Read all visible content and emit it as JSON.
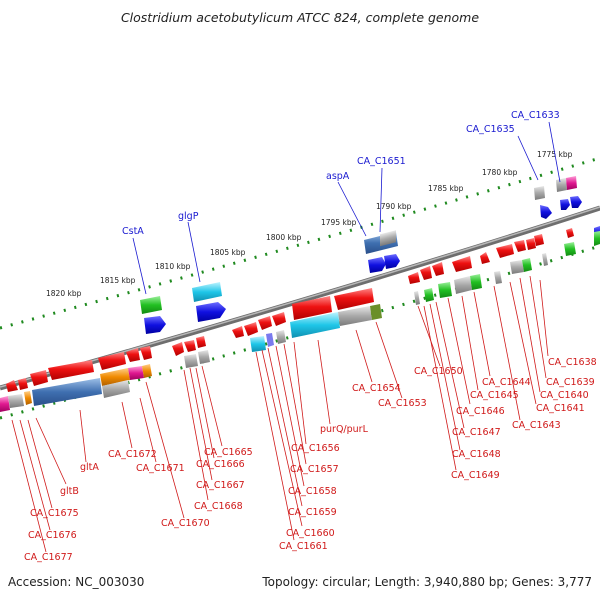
{
  "title": "Clostridium acetobutylicum ATCC 824, complete genome",
  "footer": {
    "accession": "Accession: NC_003030",
    "summary": "Topology: circular; Length: 3,940,880 bp; Genes: 3,777"
  },
  "colors": {
    "backbone": "#808080",
    "dotted_ticks": "#1f8a1f",
    "forward_label": "#1a1ad0",
    "reverse_label": "#d01a1a",
    "forward_cds": "#1010e0",
    "reverse_cds": "#ee1111"
  },
  "kbp_ticks": [
    "1775 kbp",
    "1780 kbp",
    "1785 kbp",
    "1790 kbp",
    "1795 kbp",
    "1800 kbp",
    "1805 kbp",
    "1810 kbp",
    "1815 kbp",
    "1820 kbp"
  ],
  "top_labels": [
    "CA_C1633",
    "CA_C1635",
    "CA_C1651",
    "aspA",
    "glgP",
    "CstA"
  ],
  "bottom_labels": [
    "CA_C1638",
    "CA_C1639",
    "CA_C1640",
    "CA_C1641",
    "CA_C1643",
    "CA_C1644",
    "CA_C1645",
    "CA_C1646",
    "CA_C1647",
    "CA_C1648",
    "CA_C1649",
    "CA_C1650",
    "CA_C1654",
    "CA_C1653",
    "purQ/purL",
    "CA_C1656",
    "CA_C1657",
    "CA_C1658",
    "CA_C1659",
    "CA_C1660",
    "CA_C1661",
    "CA_C1665",
    "CA_C1666",
    "CA_C1667",
    "CA_C1668",
    "CA_C1670",
    "CA_C1672",
    "CA_C1671",
    "gltA",
    "gltB",
    "CA_C1675",
    "CA_C1676",
    "CA_C1677"
  ]
}
